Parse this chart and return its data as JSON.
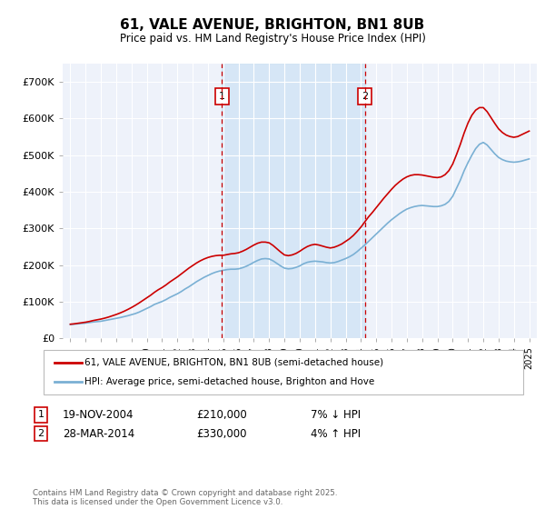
{
  "title": "61, VALE AVENUE, BRIGHTON, BN1 8UB",
  "subtitle": "Price paid vs. HM Land Registry's House Price Index (HPI)",
  "ylim": [
    0,
    750000
  ],
  "yticks": [
    0,
    100000,
    200000,
    300000,
    400000,
    500000,
    600000,
    700000
  ],
  "ytick_labels": [
    "£0",
    "£100K",
    "£200K",
    "£300K",
    "£400K",
    "£500K",
    "£600K",
    "£700K"
  ],
  "background_color": "#ffffff",
  "plot_bg_color": "#eef2fa",
  "grid_color": "#ffffff",
  "red_line_color": "#cc0000",
  "blue_line_color": "#7ab0d4",
  "marker1_label": "1",
  "marker2_label": "2",
  "marker1_date": "19-NOV-2004",
  "marker1_price": "£210,000",
  "marker1_hpi": "7% ↓ HPI",
  "marker2_date": "28-MAR-2014",
  "marker2_price": "£330,000",
  "marker2_hpi": "4% ↑ HPI",
  "legend1": "61, VALE AVENUE, BRIGHTON, BN1 8UB (semi-detached house)",
  "legend2": "HPI: Average price, semi-detached house, Brighton and Hove",
  "footnote": "Contains HM Land Registry data © Crown copyright and database right 2025.\nThis data is licensed under the Open Government Licence v3.0.",
  "marker1_x": 2004.9,
  "marker2_x": 2014.25,
  "hpi_x": [
    1995.0,
    1995.25,
    1995.5,
    1995.75,
    1996.0,
    1996.25,
    1996.5,
    1996.75,
    1997.0,
    1997.25,
    1997.5,
    1997.75,
    1998.0,
    1998.25,
    1998.5,
    1998.75,
    1999.0,
    1999.25,
    1999.5,
    1999.75,
    2000.0,
    2000.25,
    2000.5,
    2000.75,
    2001.0,
    2001.25,
    2001.5,
    2001.75,
    2002.0,
    2002.25,
    2002.5,
    2002.75,
    2003.0,
    2003.25,
    2003.5,
    2003.75,
    2004.0,
    2004.25,
    2004.5,
    2004.75,
    2005.0,
    2005.25,
    2005.5,
    2005.75,
    2006.0,
    2006.25,
    2006.5,
    2006.75,
    2007.0,
    2007.25,
    2007.5,
    2007.75,
    2008.0,
    2008.25,
    2008.5,
    2008.75,
    2009.0,
    2009.25,
    2009.5,
    2009.75,
    2010.0,
    2010.25,
    2010.5,
    2010.75,
    2011.0,
    2011.25,
    2011.5,
    2011.75,
    2012.0,
    2012.25,
    2012.5,
    2012.75,
    2013.0,
    2013.25,
    2013.5,
    2013.75,
    2014.0,
    2014.25,
    2014.5,
    2014.75,
    2015.0,
    2015.25,
    2015.5,
    2015.75,
    2016.0,
    2016.25,
    2016.5,
    2016.75,
    2017.0,
    2017.25,
    2017.5,
    2017.75,
    2018.0,
    2018.25,
    2018.5,
    2018.75,
    2019.0,
    2019.25,
    2019.5,
    2019.75,
    2020.0,
    2020.25,
    2020.5,
    2020.75,
    2021.0,
    2021.25,
    2021.5,
    2021.75,
    2022.0,
    2022.25,
    2022.5,
    2022.75,
    2023.0,
    2023.25,
    2023.5,
    2023.75,
    2024.0,
    2024.25,
    2024.5,
    2024.75,
    2025.0
  ],
  "hpi_y": [
    38000,
    39000,
    40000,
    41000,
    42000,
    43500,
    45000,
    46000,
    47000,
    49000,
    51000,
    53000,
    55000,
    57000,
    59500,
    62000,
    65000,
    68000,
    72000,
    77000,
    82000,
    87000,
    93000,
    97000,
    101000,
    106000,
    112000,
    117000,
    122000,
    128000,
    135000,
    141000,
    148000,
    155000,
    161000,
    167000,
    172000,
    177000,
    181000,
    184000,
    186000,
    188000,
    189000,
    189000,
    190000,
    193000,
    197000,
    202000,
    208000,
    213000,
    217000,
    218000,
    217000,
    212000,
    205000,
    198000,
    192000,
    190000,
    191000,
    194000,
    198000,
    204000,
    208000,
    210000,
    211000,
    210000,
    209000,
    207000,
    206000,
    207000,
    210000,
    214000,
    218000,
    223000,
    229000,
    237000,
    246000,
    255000,
    265000,
    275000,
    285000,
    295000,
    305000,
    315000,
    324000,
    332000,
    340000,
    347000,
    353000,
    357000,
    360000,
    362000,
    363000,
    362000,
    361000,
    360000,
    360000,
    362000,
    366000,
    374000,
    388000,
    410000,
    432000,
    458000,
    480000,
    500000,
    518000,
    530000,
    535000,
    528000,
    516000,
    504000,
    494000,
    488000,
    484000,
    482000,
    481000,
    482000,
    484000,
    487000,
    490000
  ],
  "price_x": [
    1995.0,
    1995.25,
    1995.5,
    1995.75,
    1996.0,
    1996.25,
    1996.5,
    1996.75,
    1997.0,
    1997.25,
    1997.5,
    1997.75,
    1998.0,
    1998.25,
    1998.5,
    1998.75,
    1999.0,
    1999.25,
    1999.5,
    1999.75,
    2000.0,
    2000.25,
    2000.5,
    2000.75,
    2001.0,
    2001.25,
    2001.5,
    2001.75,
    2002.0,
    2002.25,
    2002.5,
    2002.75,
    2003.0,
    2003.25,
    2003.5,
    2003.75,
    2004.0,
    2004.25,
    2004.5,
    2004.75,
    2005.0,
    2005.25,
    2005.5,
    2005.75,
    2006.0,
    2006.25,
    2006.5,
    2006.75,
    2007.0,
    2007.25,
    2007.5,
    2007.75,
    2008.0,
    2008.25,
    2008.5,
    2008.75,
    2009.0,
    2009.25,
    2009.5,
    2009.75,
    2010.0,
    2010.25,
    2010.5,
    2010.75,
    2011.0,
    2011.25,
    2011.5,
    2011.75,
    2012.0,
    2012.25,
    2012.5,
    2012.75,
    2013.0,
    2013.25,
    2013.5,
    2013.75,
    2014.0,
    2014.25,
    2014.5,
    2014.75,
    2015.0,
    2015.25,
    2015.5,
    2015.75,
    2016.0,
    2016.25,
    2016.5,
    2016.75,
    2017.0,
    2017.25,
    2017.5,
    2017.75,
    2018.0,
    2018.25,
    2018.5,
    2018.75,
    2019.0,
    2019.25,
    2019.5,
    2019.75,
    2020.0,
    2020.25,
    2020.5,
    2020.75,
    2021.0,
    2021.25,
    2021.5,
    2021.75,
    2022.0,
    2022.25,
    2022.5,
    2022.75,
    2023.0,
    2023.25,
    2023.5,
    2023.75,
    2024.0,
    2024.25,
    2024.5,
    2024.75,
    2025.0
  ],
  "price_y": [
    39000,
    40000,
    41500,
    43000,
    44500,
    46500,
    49000,
    51000,
    53000,
    55500,
    58500,
    62000,
    65500,
    69500,
    74000,
    79000,
    84500,
    90500,
    97000,
    104000,
    111000,
    118000,
    126000,
    133000,
    139000,
    146000,
    154000,
    161000,
    168000,
    176000,
    184000,
    192000,
    199000,
    206000,
    212000,
    217000,
    221000,
    224000,
    226000,
    227000,
    227000,
    229000,
    231000,
    232000,
    234000,
    238000,
    243000,
    249000,
    255000,
    260000,
    263000,
    263000,
    261000,
    254000,
    245000,
    236000,
    228000,
    226000,
    228000,
    232000,
    238000,
    245000,
    251000,
    255000,
    257000,
    255000,
    252000,
    249000,
    247000,
    249000,
    253000,
    258000,
    265000,
    272000,
    281000,
    292000,
    304000,
    318000,
    332000,
    344000,
    357000,
    370000,
    383000,
    395000,
    407000,
    418000,
    427000,
    435000,
    441000,
    445000,
    447000,
    447000,
    446000,
    444000,
    442000,
    440000,
    439000,
    441000,
    447000,
    458000,
    476000,
    502000,
    530000,
    561000,
    588000,
    609000,
    623000,
    630000,
    630000,
    619000,
    603000,
    587000,
    572000,
    562000,
    555000,
    551000,
    549000,
    551000,
    556000,
    561000,
    566000
  ]
}
